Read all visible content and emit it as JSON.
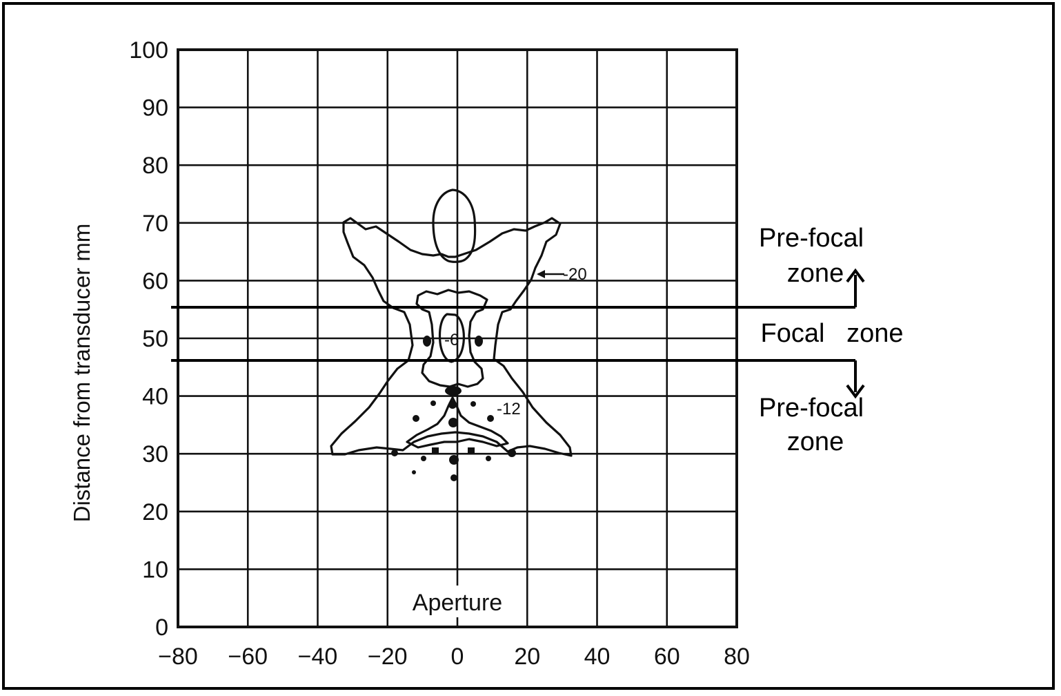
{
  "chart": {
    "ylabel": "Distance from transducer   mm",
    "center_label": "Aperture",
    "x_ticks": [
      "-80",
      "-60",
      "-40",
      "-20",
      "0",
      "20",
      "40",
      "60",
      "80"
    ],
    "y_ticks": [
      "0",
      "10",
      "20",
      "30",
      "40",
      "50",
      "60",
      "70",
      "80",
      "90",
      "100"
    ],
    "contour_labels": {
      "outer": "-20",
      "middle": "-12",
      "inner": "-6"
    }
  },
  "zones": {
    "prefocal_top_line1": "Pre-focal",
    "prefocal_top_line2": "zone",
    "focal": "Focal   zone",
    "prefocal_bottom_line1": "Pre-focal",
    "prefocal_bottom_line2": "zone"
  },
  "chart_data": {
    "type": "contour",
    "xlim": [
      -80,
      80
    ],
    "ylim": [
      0,
      100
    ],
    "x_grid_step": 20,
    "y_grid_step": 10,
    "focal_zone_boundaries_mm": [
      45.5,
      55.5
    ],
    "contour_levels_db": [
      -20,
      -12,
      -6
    ],
    "grid": true
  }
}
